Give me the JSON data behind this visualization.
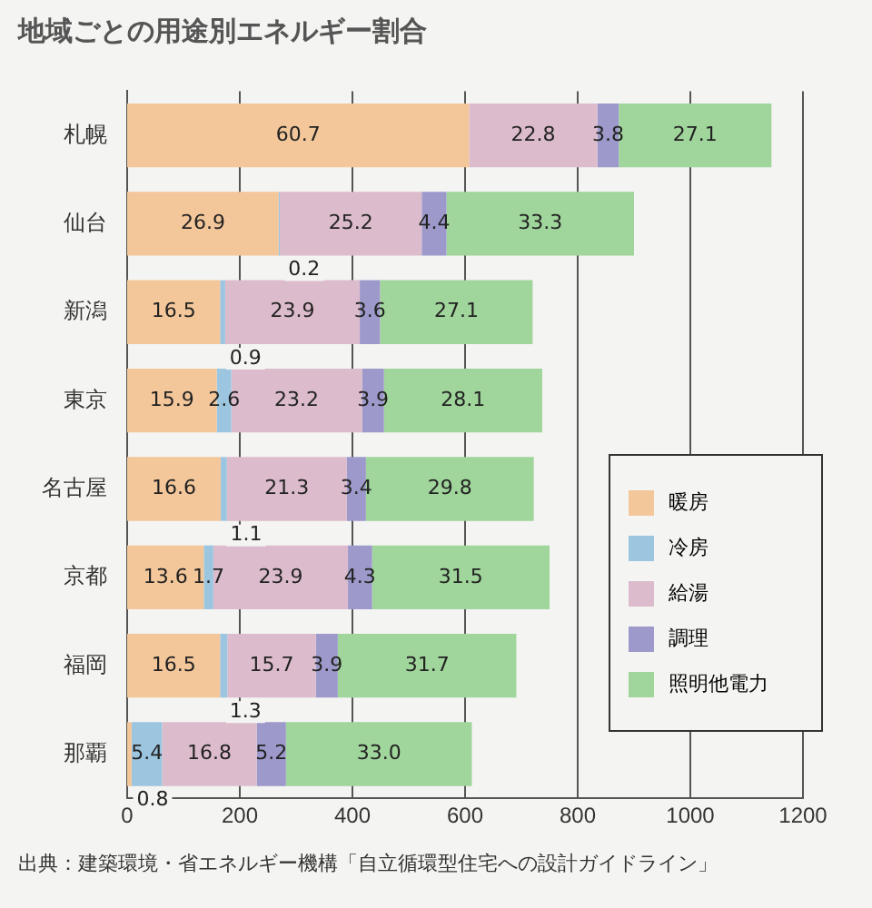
{
  "chart_data": {
    "type": "bar",
    "orientation": "horizontal",
    "stacked": true,
    "title": "地域ごとの用途別エネルギー割合",
    "categories": [
      "札幌",
      "仙台",
      "新潟",
      "東京",
      "名古屋",
      "京都",
      "福岡",
      "那覇"
    ],
    "series": [
      {
        "name": "暖房",
        "color": "#f3c79a",
        "values": [
          60.7,
          26.9,
          16.5,
          15.9,
          16.6,
          13.6,
          16.5,
          0.8
        ],
        "value_labels": [
          "60.7",
          "26.9",
          "16.5",
          "15.9",
          "16.6",
          "13.6",
          "16.5",
          "0.8"
        ]
      },
      {
        "name": "冷房",
        "color": "#9cc6e0",
        "values": [
          null,
          0.2,
          0.9,
          2.6,
          1.1,
          1.7,
          1.3,
          5.4
        ],
        "value_labels": [
          null,
          "0.2",
          "0.9",
          "2.6",
          "1.1",
          "1.7",
          "1.3",
          "5.4"
        ]
      },
      {
        "name": "給湯",
        "color": "#dcbccc",
        "values": [
          22.8,
          25.2,
          23.9,
          23.2,
          21.3,
          23.9,
          15.7,
          16.8
        ],
        "value_labels": [
          "22.8",
          "25.2",
          "23.9",
          "23.2",
          "21.3",
          "23.9",
          "15.7",
          "16.8"
        ]
      },
      {
        "name": "調理",
        "color": "#9d9acb",
        "values": [
          3.8,
          4.4,
          3.6,
          3.9,
          3.4,
          4.3,
          3.9,
          5.2
        ],
        "value_labels": [
          "3.8",
          "4.4",
          "3.6",
          "3.9",
          "3.4",
          "4.3",
          "3.9",
          "5.2"
        ]
      },
      {
        "name": "照明他電力",
        "color": "#a0d59b",
        "values": [
          27.1,
          33.3,
          27.1,
          28.1,
          29.8,
          31.5,
          31.7,
          33.0
        ],
        "value_labels": [
          "27.1",
          "33.3",
          "27.1",
          "28.1",
          "29.8",
          "31.5",
          "31.7",
          "33.0"
        ]
      }
    ],
    "xlim": [
      0,
      120
    ],
    "x2lim": [
      0,
      1200
    ],
    "x2ticks": [
      0,
      200,
      400,
      600,
      800,
      1000,
      1200
    ],
    "grid": "x",
    "legend": "bottom right",
    "annotations": [
      "出典：建築環境・省エネルギー機構「自立循環型住宅への設計ガイドライン」"
    ]
  }
}
